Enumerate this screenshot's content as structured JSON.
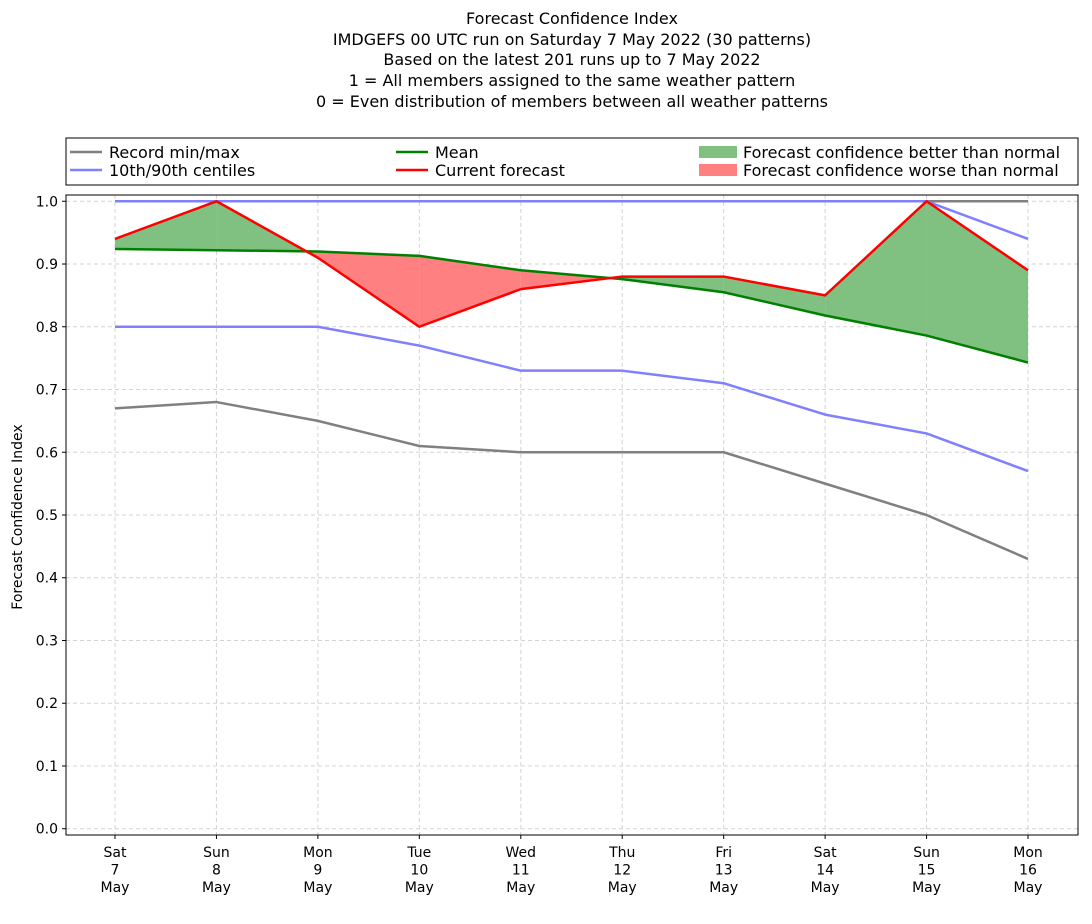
{
  "chart_data": {
    "type": "line",
    "title_lines": [
      "Forecast Confidence Index",
      "IMDGEFS 00 UTC run on Saturday 7 May 2022 (30 patterns)",
      "Based on the latest 201 runs up to 7 May 2022",
      "1 = All members assigned to the same weather pattern",
      "0 = Even distribution of members between all weather patterns"
    ],
    "ylabel": "Forecast Confidence Index",
    "xlabel": "",
    "ylim": [
      -0.01,
      1.01
    ],
    "yticks": [
      "0.0",
      "0.1",
      "0.2",
      "0.3",
      "0.4",
      "0.5",
      "0.6",
      "0.7",
      "0.8",
      "0.9",
      "1.0"
    ],
    "grid": true,
    "legend_position": "top, above plot",
    "categories": [
      [
        "Sat",
        "7",
        "May"
      ],
      [
        "Sun",
        "8",
        "May"
      ],
      [
        "Mon",
        "9",
        "May"
      ],
      [
        "Tue",
        "10",
        "May"
      ],
      [
        "Wed",
        "11",
        "May"
      ],
      [
        "Thu",
        "12",
        "May"
      ],
      [
        "Fri",
        "13",
        "May"
      ],
      [
        "Sat",
        "14",
        "May"
      ],
      [
        "Sun",
        "15",
        "May"
      ],
      [
        "Mon",
        "16",
        "May"
      ]
    ],
    "series": {
      "record_min": [
        0.67,
        0.68,
        0.65,
        0.61,
        0.6,
        0.6,
        0.6,
        0.55,
        0.5,
        0.43
      ],
      "record_max": [
        1.0,
        1.0,
        1.0,
        1.0,
        1.0,
        1.0,
        1.0,
        1.0,
        1.0,
        1.0
      ],
      "p10": [
        0.8,
        0.8,
        0.8,
        0.77,
        0.73,
        0.73,
        0.71,
        0.66,
        0.63,
        0.57
      ],
      "p90": [
        1.0,
        1.0,
        1.0,
        1.0,
        1.0,
        1.0,
        1.0,
        1.0,
        1.0,
        0.94
      ],
      "mean": [
        0.924,
        0.922,
        0.92,
        0.913,
        0.89,
        0.876,
        0.855,
        0.818,
        0.786,
        0.743
      ],
      "current": [
        0.94,
        1.0,
        0.91,
        0.8,
        0.86,
        0.88,
        0.88,
        0.85,
        1.0,
        0.89
      ]
    },
    "colors": {
      "record": "#808080",
      "centiles": "#8080ff",
      "mean": "#008000",
      "current": "#ff0000",
      "better_fill": "#80c080",
      "worse_fill": "#ff8080",
      "grid": "#d3d3d3"
    },
    "legend": [
      {
        "label": "Record min/max",
        "kind": "line",
        "color": "#808080"
      },
      {
        "label": "10th/90th centiles",
        "kind": "line",
        "color": "#8080ff"
      },
      {
        "label": "Mean",
        "kind": "line",
        "color": "#008000"
      },
      {
        "label": "Current forecast",
        "kind": "line",
        "color": "#ff0000"
      },
      {
        "label": "Forecast confidence better than normal",
        "kind": "patch",
        "color": "#80c080"
      },
      {
        "label": "Forecast confidence worse than normal",
        "kind": "patch",
        "color": "#ff8080"
      }
    ]
  }
}
